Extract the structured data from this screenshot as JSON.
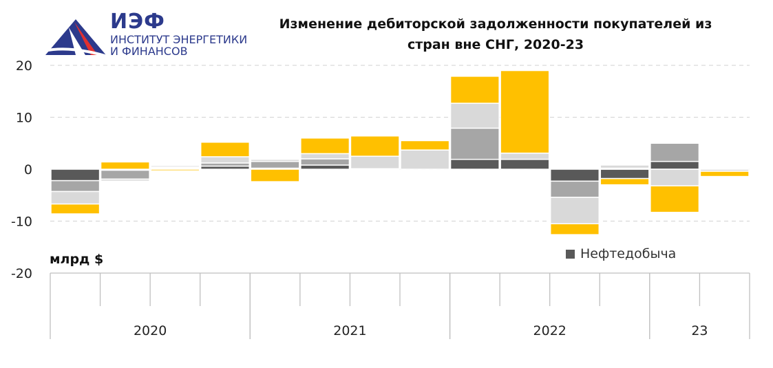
{
  "logo": {
    "abbr": "ИЭФ",
    "line1": "ИНСТИТУТ ЭНЕРГЕТИКИ",
    "line2": "И ФИНАНСОВ"
  },
  "colors": {
    "series": [
      "#595959",
      "#a6a6a6",
      "#d9d9d9",
      "#ffc000"
    ],
    "grid": "#d9d9d9",
    "axis": "#bfbfbf"
  },
  "chart_data": {
    "type": "bar",
    "stacked": true,
    "title": "Изменение дебиторской задолженности покупателей из стран вне СНГ, 2020-23",
    "title_lines": [
      "Изменение дебиторской задолженности покупателей из",
      "стран вне СНГ, 2020-23"
    ],
    "ylabel": "млрд $",
    "ylim": [
      -20,
      20
    ],
    "yticks": [
      20,
      10,
      0,
      -10,
      -20
    ],
    "grid": true,
    "year_groups": [
      {
        "label": "2020",
        "quarters": 4
      },
      {
        "label": "2021",
        "quarters": 4
      },
      {
        "label": "2022",
        "quarters": 4
      },
      {
        "label": "23",
        "quarters": 2
      }
    ],
    "legend_visible": [
      "Нефтедобыча"
    ],
    "series": [
      {
        "name": "Нефтедобыча",
        "values": [
          -2.2,
          -0.2,
          0.2,
          0.6,
          0.2,
          0.8,
          0.0,
          0.0,
          1.9,
          1.9,
          -2.3,
          -1.8,
          1.5,
          0.0
        ]
      },
      {
        "values": [
          -2.1,
          -1.7,
          0.2,
          0.6,
          1.3,
          1.2,
          0.1,
          0.0,
          6.0,
          0.0,
          -3.1,
          0.2,
          3.5,
          0.0
        ]
      },
      {
        "values": [
          -2.4,
          -0.4,
          0.3,
          1.2,
          0.4,
          1.0,
          2.4,
          3.7,
          4.8,
          1.2,
          -5.1,
          0.6,
          -3.2,
          -0.4
        ]
      },
      {
        "values": [
          -1.9,
          1.4,
          -0.3,
          2.8,
          -2.4,
          3.0,
          3.9,
          1.8,
          5.2,
          15.9,
          -2.1,
          -1.2,
          -5.1,
          -1.0
        ]
      }
    ]
  }
}
